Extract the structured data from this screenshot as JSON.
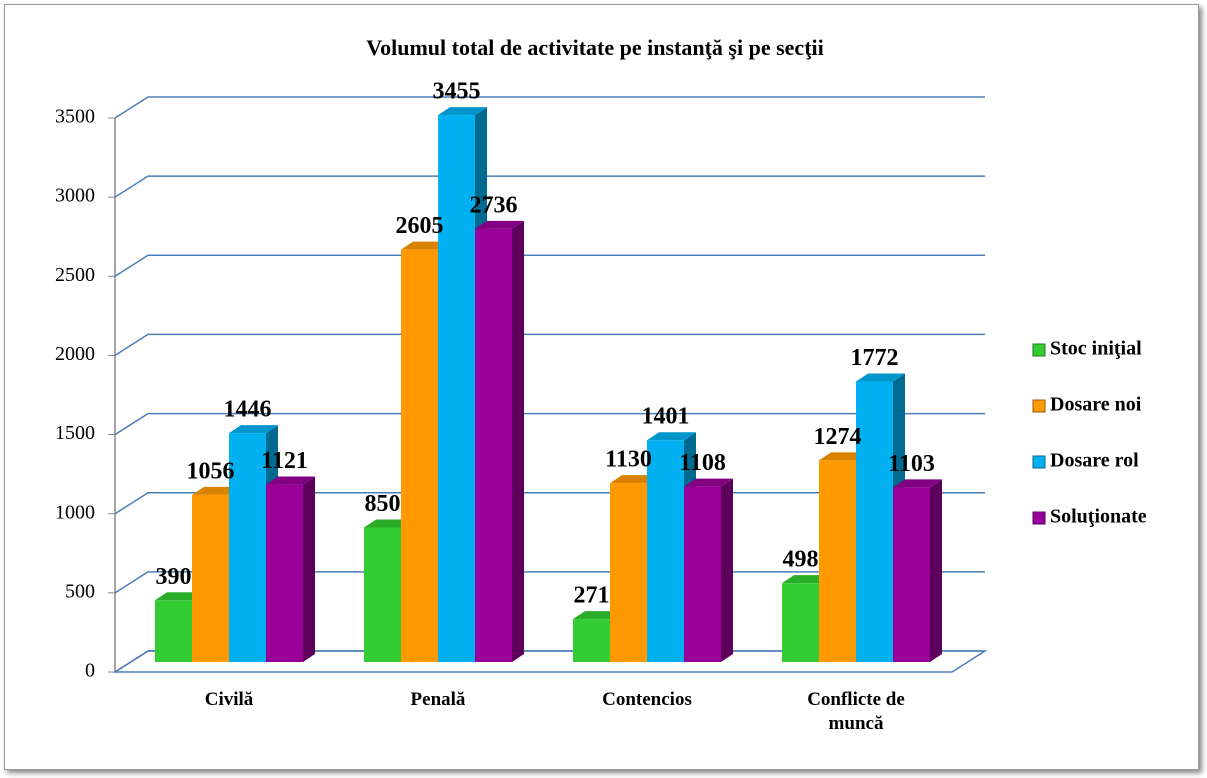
{
  "chart_data": {
    "type": "bar",
    "title": "Volumul total de activitate pe instanţă şi pe secţii",
    "categories": [
      "Civilă",
      "Penală",
      "Contencios",
      "Conflicte de muncă"
    ],
    "series": [
      {
        "name": "Stoc iniţial",
        "color": "#33cc33",
        "values": [
          390,
          850,
          271,
          498
        ]
      },
      {
        "name": "Dosare noi",
        "color": "#ff9900",
        "values": [
          1056,
          2605,
          1130,
          1274
        ]
      },
      {
        "name": "Dosare rol",
        "color": "#00b0f0",
        "values": [
          1446,
          3455,
          1401,
          1772
        ]
      },
      {
        "name": "Soluţionate",
        "color": "#990099",
        "values": [
          1121,
          2736,
          1108,
          1103
        ]
      }
    ],
    "ylim": [
      0,
      3500
    ],
    "yticks": [
      0,
      500,
      1000,
      1500,
      2000,
      2500,
      3000,
      3500
    ],
    "grid": true,
    "legend": "right"
  }
}
